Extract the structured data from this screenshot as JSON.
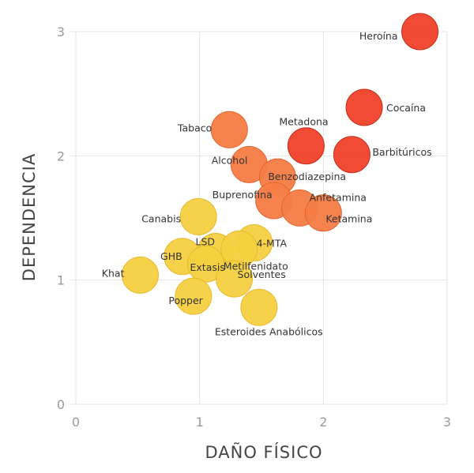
{
  "chart_data": {
    "type": "scatter",
    "title": "",
    "xlabel": "DAÑO FÍSICO",
    "ylabel": "DEPENDENCIA",
    "xlim": [
      0,
      3
    ],
    "ylim": [
      0,
      3
    ],
    "xticks": [
      "0",
      "1",
      "2",
      "3"
    ],
    "yticks": [
      "0",
      "1",
      "2",
      "3"
    ],
    "grid": true,
    "colors": {
      "high": "#f0402a",
      "medium": "#f57c45",
      "low": "#f4d03f",
      "high_stroke": "#c62f1c",
      "medium_stroke": "#e4642c",
      "low_stroke": "#e7b92c"
    },
    "points": [
      {
        "label": "Heroína",
        "x": 2.78,
        "y": 3.0,
        "level": "high"
      },
      {
        "label": "Cocaína",
        "x": 2.33,
        "y": 2.39,
        "level": "high"
      },
      {
        "label": "Barbitúricos",
        "x": 2.23,
        "y": 2.01,
        "level": "high"
      },
      {
        "label": "Metadona",
        "x": 1.86,
        "y": 2.08,
        "level": "high"
      },
      {
        "label": "Tabaco",
        "x": 1.24,
        "y": 2.21,
        "level": "medium"
      },
      {
        "label": "Alcohol",
        "x": 1.4,
        "y": 1.93,
        "level": "medium"
      },
      {
        "label": "Benzodiazepina",
        "x": 1.63,
        "y": 1.83,
        "level": "medium"
      },
      {
        "label": "Buprenofina",
        "x": 1.6,
        "y": 1.64,
        "level": "medium"
      },
      {
        "label": "Anfetamina",
        "x": 1.81,
        "y": 1.58,
        "level": "medium"
      },
      {
        "label": "Ketamina",
        "x": 2.0,
        "y": 1.54,
        "level": "medium"
      },
      {
        "label": "Canabis",
        "x": 0.99,
        "y": 1.51,
        "level": "low"
      },
      {
        "label": "4-MTA",
        "x": 1.44,
        "y": 1.3,
        "level": "low"
      },
      {
        "label": "LSD",
        "x": 1.13,
        "y": 1.23,
        "level": "low"
      },
      {
        "label": "Metilfenidato",
        "x": 1.32,
        "y": 1.25,
        "level": "low"
      },
      {
        "label": "GHB",
        "x": 0.86,
        "y": 1.19,
        "level": "low"
      },
      {
        "label": "Extasis",
        "x": 1.05,
        "y": 1.13,
        "level": "low"
      },
      {
        "label": "Solventes",
        "x": 1.28,
        "y": 1.01,
        "level": "low"
      },
      {
        "label": "Khat",
        "x": 0.52,
        "y": 1.04,
        "level": "low"
      },
      {
        "label": "Popper",
        "x": 0.95,
        "y": 0.87,
        "level": "low"
      },
      {
        "label": "Esteroides Anabólicos",
        "x": 1.48,
        "y": 0.78,
        "level": "low"
      }
    ]
  }
}
